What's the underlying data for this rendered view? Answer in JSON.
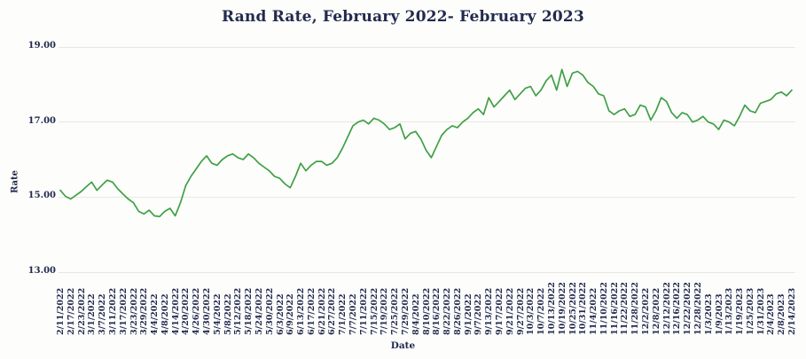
{
  "page": {
    "background": "#fdfdfc"
  },
  "chart_data": {
    "type": "line",
    "title": "Rand Rate, February 2022- February 2023",
    "xlabel": "Date",
    "ylabel": "Rate",
    "ylim": [
      13,
      19
    ],
    "y_ticks": [
      "19.00",
      "17.00",
      "15.00",
      "13.00"
    ],
    "grid": "horizontal-only",
    "legend": "none",
    "line_color": "#3fa044",
    "grid_color": "#e9e7e2",
    "text_color": "#222a4e",
    "points_per_label": 2,
    "categories": [
      "2/11/2022",
      "2/17/2022",
      "2/23/2022",
      "3/1/2022",
      "3/7/2022",
      "3/11/2022",
      "3/17/2022",
      "3/23/2022",
      "3/29/2022",
      "4/4/2022",
      "4/8/2022",
      "4/14/2022",
      "4/20/2022",
      "4/26/2022",
      "4/30/2022",
      "5/4/2022",
      "5/8/2022",
      "5/12/2022",
      "5/18/2022",
      "5/24/2022",
      "5/30/2022",
      "6/3/2022",
      "6/9/2022",
      "6/13/2022",
      "6/17/2022",
      "6/21/2022",
      "6/27/2022",
      "7/1/2022",
      "7/7/2022",
      "7/11/2022",
      "7/15/2022",
      "7/19/2022",
      "7/25/2022",
      "7/29/2022",
      "8/4/2022",
      "8/10/2022",
      "8/16/2022",
      "8/22/2022",
      "8/26/2022",
      "9/1/2022",
      "9/7/2022",
      "9/13/2022",
      "9/17/2022",
      "9/21/2022",
      "9/27/2022",
      "10/3/2022",
      "10/7/2022",
      "10/13/2022",
      "10/19/2022",
      "10/25/2022",
      "10/31/2022",
      "11/4/2022",
      "11/10/2022",
      "11/16/2022",
      "11/22/2022",
      "11/28/2022",
      "12/2/2022",
      "12/8/2022",
      "12/12/2022",
      "12/16/2022",
      "12/22/2022",
      "12/28/2022",
      "1/3/2023",
      "1/9/2023",
      "1/13/2023",
      "1/19/2023",
      "1/25/2023",
      "1/31/2023",
      "2/4/2023",
      "2/8/2023",
      "2/14/2023"
    ],
    "values": [
      15.18,
      15.02,
      14.95,
      15.05,
      15.15,
      15.28,
      15.4,
      15.18,
      15.32,
      15.45,
      15.4,
      15.22,
      15.08,
      14.95,
      14.85,
      14.62,
      14.55,
      14.65,
      14.5,
      14.48,
      14.62,
      14.7,
      14.5,
      14.85,
      15.3,
      15.55,
      15.75,
      15.95,
      16.1,
      15.9,
      15.85,
      16.0,
      16.1,
      16.15,
      16.05,
      16.0,
      16.15,
      16.05,
      15.9,
      15.8,
      15.7,
      15.55,
      15.5,
      15.35,
      15.25,
      15.55,
      15.9,
      15.7,
      15.85,
      15.95,
      15.95,
      15.85,
      15.9,
      16.05,
      16.3,
      16.6,
      16.9,
      17.0,
      17.05,
      16.95,
      17.1,
      17.05,
      16.95,
      16.8,
      16.85,
      16.95,
      16.55,
      16.7,
      16.75,
      16.55,
      16.25,
      16.05,
      16.35,
      16.65,
      16.8,
      16.9,
      16.85,
      17.0,
      17.1,
      17.25,
      17.35,
      17.2,
      17.65,
      17.4,
      17.55,
      17.7,
      17.85,
      17.6,
      17.75,
      17.9,
      17.95,
      17.7,
      17.85,
      18.1,
      18.25,
      17.85,
      18.4,
      17.95,
      18.3,
      18.35,
      18.25,
      18.05,
      17.95,
      17.75,
      17.7,
      17.3,
      17.2,
      17.3,
      17.35,
      17.15,
      17.2,
      17.45,
      17.4,
      17.05,
      17.3,
      17.65,
      17.55,
      17.25,
      17.1,
      17.25,
      17.2,
      17.0,
      17.05,
      17.15,
      17.0,
      16.95,
      16.8,
      17.05,
      17.0,
      16.9,
      17.15,
      17.45,
      17.3,
      17.25,
      17.5,
      17.55,
      17.6,
      17.75,
      17.8,
      17.7,
      17.85
    ]
  }
}
